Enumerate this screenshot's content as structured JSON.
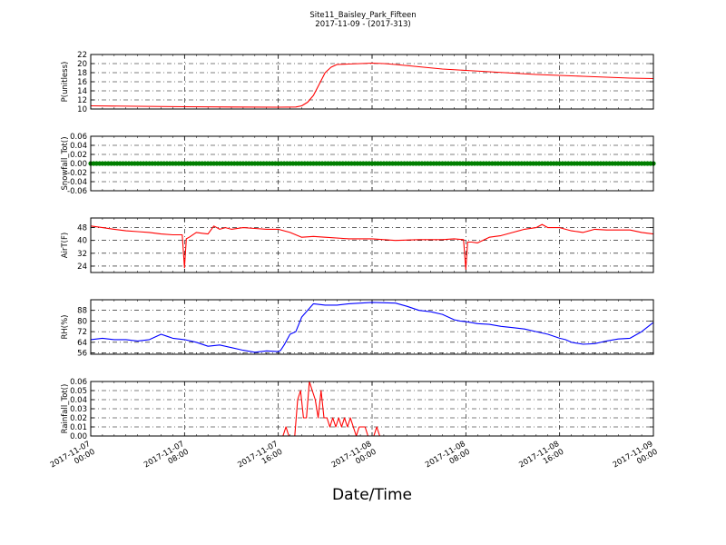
{
  "figure": {
    "title": "Site11_Baisley_Park_Fifteen",
    "subtitle": "2017-11-09 - (2017-313)",
    "xlabel": "Date/Time",
    "x_ticks": [
      {
        "t": 0,
        "l1": "2017-11-07",
        "l2": "00:00"
      },
      {
        "t": 8,
        "l1": "2017-11-07",
        "l2": "08:00"
      },
      {
        "t": 16,
        "l1": "2017-11-07",
        "l2": "16:00"
      },
      {
        "t": 24,
        "l1": "2017-11-08",
        "l2": "00:00"
      },
      {
        "t": 32,
        "l1": "2017-11-08",
        "l2": "08:00"
      },
      {
        "t": 40,
        "l1": "2017-11-08",
        "l2": "16:00"
      },
      {
        "t": 48,
        "l1": "2017-11-09",
        "l2": "00:00"
      }
    ]
  },
  "chart_data": [
    {
      "type": "line",
      "ylabel": "P(unitless)",
      "ylim": [
        10,
        22
      ],
      "yticks": [
        10,
        12,
        14,
        16,
        18,
        20,
        22
      ],
      "tick_format": "int",
      "grid": true,
      "color": "#ff0000",
      "x_hours": [
        0,
        4,
        8,
        12,
        16,
        17.5,
        18,
        18.5,
        19,
        19.5,
        20,
        20.5,
        21,
        22,
        23,
        24,
        25,
        26,
        28,
        30,
        32,
        34,
        36,
        38,
        40,
        42,
        44,
        46,
        48
      ],
      "values": [
        10.7,
        10.6,
        10.5,
        10.45,
        10.4,
        10.45,
        10.7,
        11.5,
        13,
        15.5,
        18,
        19.2,
        19.8,
        19.9,
        20,
        20.1,
        20,
        19.8,
        19.3,
        18.8,
        18.5,
        18.2,
        17.9,
        17.6,
        17.4,
        17.2,
        17.0,
        16.8,
        16.7
      ]
    },
    {
      "type": "line",
      "ylabel": "Snowfall_Tot()",
      "ylim": [
        -0.06,
        0.06
      ],
      "yticks": [
        -0.06,
        -0.04,
        -0.02,
        0.0,
        0.02,
        0.04,
        0.06
      ],
      "tick_format": "2dec",
      "grid": true,
      "color": "#007f00",
      "marker": "dot",
      "x_hours": [
        0,
        48
      ],
      "values": [
        0,
        0
      ]
    },
    {
      "type": "line",
      "ylabel": "AirT(F)",
      "ylim": [
        20,
        54
      ],
      "yticks": [
        24,
        32,
        40,
        48
      ],
      "tick_format": "int",
      "grid": true,
      "color": "#ff0000",
      "x_hours": [
        0,
        1,
        2,
        3,
        4,
        5,
        6,
        7,
        7.8,
        8.0,
        8.15,
        8.4,
        9,
        9.5,
        10,
        10.5,
        11,
        11.5,
        12,
        13,
        14,
        15,
        16,
        17,
        18,
        19,
        20,
        22,
        24,
        26,
        28,
        30,
        31,
        31.8,
        32.0,
        32.15,
        32.5,
        33,
        34,
        35,
        36,
        37,
        38,
        38.5,
        39,
        40,
        41,
        42,
        43,
        44,
        46,
        47,
        48
      ],
      "values": [
        49,
        48,
        47,
        46,
        45.5,
        45,
        44,
        43.5,
        43.5,
        23,
        41,
        42,
        45,
        44.5,
        44,
        49,
        47,
        48,
        47,
        48,
        47.5,
        47,
        47,
        45,
        42,
        42.5,
        42,
        41,
        41,
        40,
        40.5,
        40.5,
        41,
        40.5,
        22,
        39,
        39,
        38.5,
        42,
        43,
        45,
        47,
        48,
        50,
        48,
        48,
        46,
        45,
        47,
        46.5,
        46.5,
        45,
        44
      ]
    },
    {
      "type": "line",
      "ylabel": "RH(%)",
      "ylim": [
        55,
        96
      ],
      "yticks": [
        56,
        64,
        72,
        80,
        88
      ],
      "tick_format": "int",
      "grid": true,
      "color": "#0000ff",
      "x_hours": [
        0,
        1,
        2,
        3,
        4,
        5,
        6,
        6.5,
        7,
        8,
        9,
        10,
        11,
        12,
        13,
        14,
        15,
        16,
        16.2,
        16.5,
        17,
        17.5,
        18,
        19,
        20,
        21,
        22,
        24,
        26,
        27,
        28,
        29,
        30,
        31,
        31.5,
        32,
        33,
        34,
        35,
        36,
        37,
        38,
        39,
        40,
        40.5,
        41,
        42,
        43,
        44,
        45,
        46,
        47,
        48
      ],
      "values": [
        66,
        67,
        66,
        66,
        65,
        66,
        70,
        68.5,
        67,
        66,
        64,
        61,
        62,
        60,
        58,
        56.5,
        57.5,
        57,
        58,
        62,
        70,
        72,
        83,
        93,
        92,
        92,
        93,
        94,
        93.5,
        91,
        88,
        87,
        85,
        81,
        80,
        79.5,
        78,
        77.5,
        76,
        75,
        74,
        72,
        70,
        67,
        66,
        64,
        62.5,
        63,
        65,
        66.5,
        67,
        72,
        79
      ]
    },
    {
      "type": "line",
      "ylabel": "Rainfall_Tot()",
      "ylim": [
        0,
        0.06
      ],
      "yticks": [
        0.0,
        0.01,
        0.02,
        0.03,
        0.04,
        0.05,
        0.06
      ],
      "tick_format": "2dec",
      "grid": true,
      "color": "#ff0000",
      "x_hours": [
        0,
        16.4,
        16.65,
        16.9,
        17.15,
        17.4,
        17.65,
        17.9,
        18.15,
        18.4,
        18.65,
        18.9,
        19.15,
        19.4,
        19.65,
        19.9,
        20.15,
        20.4,
        20.65,
        20.9,
        21.15,
        21.4,
        21.65,
        21.9,
        22.15,
        22.4,
        22.65,
        22.9,
        23.15,
        23.4,
        23.65,
        23.9,
        24.15,
        24.4,
        24.65,
        24.9,
        25.15,
        25.4,
        25.65,
        25.9,
        26.15,
        26.4,
        26.65,
        48
      ],
      "values": [
        0,
        0,
        0.01,
        0,
        0,
        0,
        0.04,
        0.05,
        0.02,
        0.02,
        0.06,
        0.05,
        0.04,
        0.02,
        0.05,
        0.02,
        0.02,
        0.01,
        0.02,
        0.01,
        0.02,
        0.01,
        0.02,
        0.01,
        0.02,
        0.01,
        0,
        0.01,
        0.01,
        0.01,
        0,
        0,
        0,
        0.01,
        0,
        0,
        0,
        0,
        0,
        0,
        0,
        0,
        0,
        0
      ]
    }
  ]
}
